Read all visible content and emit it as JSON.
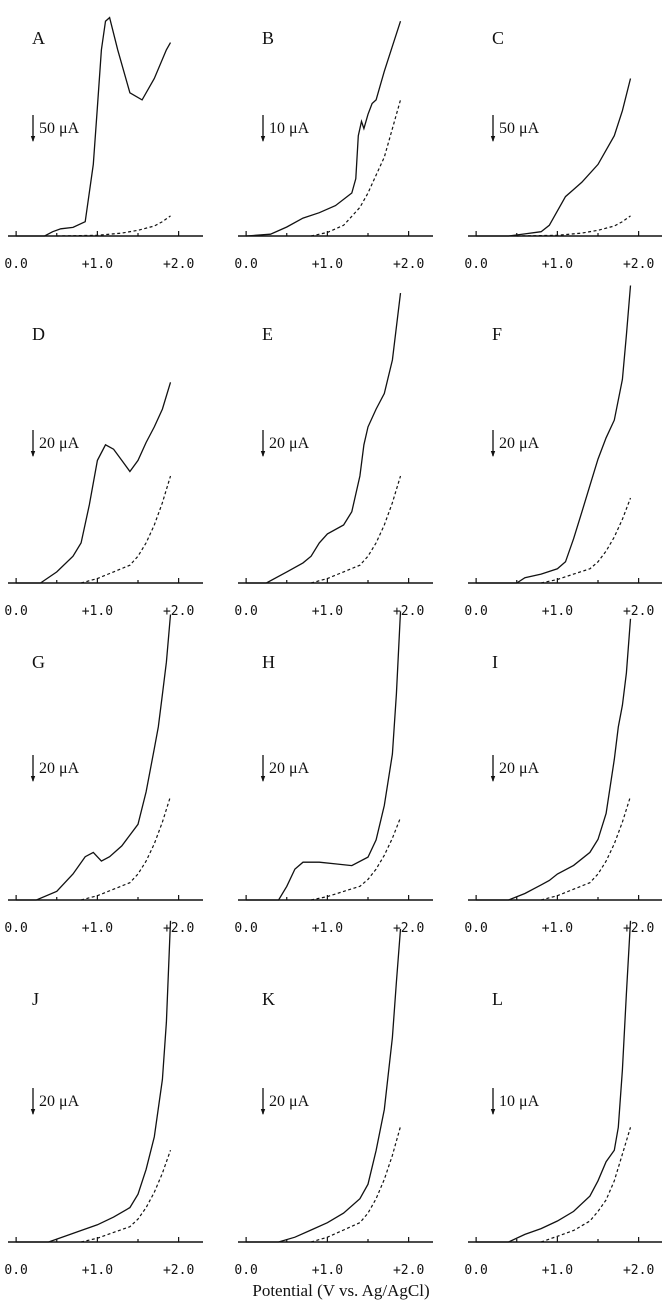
{
  "figure": {
    "xlabel": "Potential (V vs. Ag/AgCl)"
  },
  "chart_data": [
    {
      "type": "line",
      "title": "A",
      "scale_label": "50 μA",
      "scale_value": 50,
      "x_ticks": [
        "0.0",
        "+1.0",
        "+2.0"
      ],
      "xlim": [
        -0.1,
        2.3
      ],
      "ylim": [
        0,
        310
      ],
      "series": [
        {
          "style": "solid",
          "x": [
            0.0,
            0.35,
            0.45,
            0.55,
            0.7,
            0.85,
            0.95,
            1.0,
            1.05,
            1.1,
            1.15,
            1.25,
            1.4,
            1.55,
            1.7,
            1.85,
            1.9
          ],
          "y": [
            0,
            0,
            6,
            10,
            12,
            20,
            100,
            180,
            260,
            300,
            305,
            260,
            200,
            190,
            220,
            260,
            270
          ]
        },
        {
          "style": "dashed",
          "x": [
            0.5,
            1.0,
            1.3,
            1.5,
            1.7,
            1.8,
            1.9
          ],
          "y": [
            0,
            1,
            4,
            8,
            14,
            20,
            28
          ]
        }
      ]
    },
    {
      "type": "line",
      "title": "B",
      "scale_label": "10 μA",
      "scale_value": 10,
      "x_ticks": [
        "0.0",
        "+1.0",
        "+2.0"
      ],
      "xlim": [
        -0.1,
        2.3
      ],
      "ylim": [
        0,
        62
      ],
      "series": [
        {
          "style": "solid",
          "x": [
            0.0,
            0.3,
            0.5,
            0.7,
            0.9,
            1.1,
            1.3,
            1.35,
            1.38,
            1.42,
            1.45,
            1.5,
            1.55,
            1.6,
            1.65,
            1.7,
            1.8,
            1.9
          ],
          "y": [
            0,
            0.5,
            2.5,
            5,
            6.5,
            8.5,
            12,
            16,
            28,
            32,
            30,
            34,
            37,
            38,
            42,
            46,
            53,
            60
          ]
        },
        {
          "style": "dashed",
          "x": [
            0.8,
            1.0,
            1.2,
            1.4,
            1.5,
            1.6,
            1.7,
            1.8,
            1.9
          ],
          "y": [
            0,
            1,
            3,
            8,
            12,
            17,
            22,
            30,
            38
          ]
        }
      ]
    },
    {
      "type": "line",
      "title": "C",
      "scale_label": "50 μA",
      "scale_value": 50,
      "x_ticks": [
        "0.0",
        "+1.0",
        "+2.0"
      ],
      "xlim": [
        -0.1,
        2.3
      ],
      "ylim": [
        0,
        310
      ],
      "series": [
        {
          "style": "solid",
          "x": [
            0.0,
            0.4,
            0.6,
            0.8,
            0.9,
            1.0,
            1.1,
            1.2,
            1.3,
            1.5,
            1.7,
            1.8,
            1.9
          ],
          "y": [
            0,
            0,
            3,
            6,
            15,
            35,
            55,
            65,
            75,
            100,
            140,
            175,
            220
          ]
        },
        {
          "style": "dashed",
          "x": [
            0.5,
            1.0,
            1.3,
            1.5,
            1.7,
            1.8,
            1.9
          ],
          "y": [
            0,
            1,
            4,
            8,
            14,
            20,
            28
          ]
        }
      ]
    },
    {
      "type": "line",
      "title": "D",
      "scale_label": "20 μA",
      "scale_value": 20,
      "x_ticks": [
        "0.0",
        "+1.0",
        "+2.0"
      ],
      "xlim": [
        -0.1,
        2.3
      ],
      "ylim": [
        0,
        135
      ],
      "series": [
        {
          "style": "solid",
          "x": [
            0.0,
            0.3,
            0.5,
            0.7,
            0.8,
            0.9,
            1.0,
            1.1,
            1.2,
            1.3,
            1.4,
            1.5,
            1.6,
            1.7,
            1.8,
            1.9
          ],
          "y": [
            0,
            0,
            5,
            12,
            18,
            35,
            55,
            62,
            60,
            55,
            50,
            55,
            63,
            70,
            78,
            90
          ]
        },
        {
          "style": "dashed",
          "x": [
            0.8,
            1.0,
            1.2,
            1.4,
            1.5,
            1.6,
            1.7,
            1.8,
            1.9
          ],
          "y": [
            0,
            2,
            5,
            8,
            12,
            18,
            26,
            36,
            48
          ]
        }
      ]
    },
    {
      "type": "line",
      "title": "E",
      "scale_label": "20 μA",
      "scale_value": 20,
      "x_ticks": [
        "0.0",
        "+1.0",
        "+2.0"
      ],
      "xlim": [
        -0.1,
        2.3
      ],
      "ylim": [
        0,
        135
      ],
      "series": [
        {
          "style": "solid",
          "x": [
            0.0,
            0.25,
            0.5,
            0.7,
            0.8,
            0.9,
            1.0,
            1.2,
            1.3,
            1.4,
            1.45,
            1.5,
            1.6,
            1.7,
            1.8,
            1.9
          ],
          "y": [
            0,
            0,
            5,
            9,
            12,
            18,
            22,
            26,
            32,
            48,
            62,
            70,
            78,
            85,
            100,
            130
          ]
        },
        {
          "style": "dashed",
          "x": [
            0.8,
            1.0,
            1.2,
            1.4,
            1.5,
            1.6,
            1.7,
            1.8,
            1.9
          ],
          "y": [
            0,
            2,
            5,
            8,
            12,
            18,
            26,
            36,
            48
          ]
        }
      ]
    },
    {
      "type": "line",
      "title": "F",
      "scale_label": "20 μA",
      "scale_value": 20,
      "x_ticks": [
        "0.0",
        "+1.0",
        "+2.0"
      ],
      "xlim": [
        -0.1,
        2.3
      ],
      "ylim": [
        0,
        170
      ],
      "series": [
        {
          "style": "solid",
          "x": [
            0.0,
            0.5,
            0.6,
            0.8,
            1.0,
            1.1,
            1.2,
            1.3,
            1.4,
            1.5,
            1.6,
            1.7,
            1.8,
            1.85,
            1.9
          ],
          "y": [
            0,
            0,
            3,
            5,
            8,
            12,
            25,
            40,
            55,
            70,
            82,
            92,
            115,
            140,
            168
          ]
        },
        {
          "style": "dashed",
          "x": [
            0.8,
            1.0,
            1.2,
            1.4,
            1.5,
            1.6,
            1.7,
            1.8,
            1.9
          ],
          "y": [
            0,
            2,
            5,
            8,
            12,
            18,
            26,
            36,
            48
          ]
        }
      ]
    },
    {
      "type": "line",
      "title": "G",
      "scale_label": "20 μA",
      "scale_value": 20,
      "x_ticks": [
        "0.0",
        "+1.0",
        "+2.0"
      ],
      "xlim": [
        -0.1,
        2.3
      ],
      "ylim": [
        0,
        135
      ],
      "series": [
        {
          "style": "solid",
          "x": [
            0.0,
            0.25,
            0.5,
            0.7,
            0.85,
            0.95,
            1.05,
            1.15,
            1.3,
            1.5,
            1.6,
            1.7,
            1.75,
            1.8,
            1.85,
            1.9
          ],
          "y": [
            0,
            0,
            4,
            12,
            20,
            22,
            18,
            20,
            25,
            35,
            50,
            70,
            80,
            95,
            110,
            132
          ]
        },
        {
          "style": "dashed",
          "x": [
            0.8,
            1.0,
            1.2,
            1.4,
            1.5,
            1.6,
            1.7,
            1.8,
            1.9
          ],
          "y": [
            0,
            2,
            5,
            8,
            12,
            18,
            26,
            36,
            48
          ]
        }
      ]
    },
    {
      "type": "line",
      "title": "H",
      "scale_label": "20 μA",
      "scale_value": 20,
      "x_ticks": [
        "0.0",
        "+1.0",
        "+2.0"
      ],
      "xlim": [
        -0.1,
        2.3
      ],
      "ylim": [
        0,
        170
      ],
      "series": [
        {
          "style": "solid",
          "x": [
            0.0,
            0.4,
            0.5,
            0.6,
            0.7,
            0.9,
            1.1,
            1.3,
            1.5,
            1.6,
            1.7,
            1.8,
            1.85,
            1.9
          ],
          "y": [
            0,
            0,
            8,
            18,
            22,
            22,
            21,
            20,
            25,
            35,
            55,
            85,
            120,
            168
          ]
        },
        {
          "style": "dashed",
          "x": [
            0.8,
            1.0,
            1.2,
            1.4,
            1.5,
            1.6,
            1.7,
            1.8,
            1.9
          ],
          "y": [
            0,
            2,
            5,
            8,
            12,
            18,
            26,
            36,
            48
          ]
        }
      ]
    },
    {
      "type": "line",
      "title": "I",
      "scale_label": "20 μA",
      "scale_value": 20,
      "x_ticks": [
        "0.0",
        "+1.0",
        "+2.0"
      ],
      "xlim": [
        -0.1,
        2.3
      ],
      "ylim": [
        0,
        135
      ],
      "series": [
        {
          "style": "solid",
          "x": [
            0.0,
            0.4,
            0.6,
            0.8,
            0.9,
            1.0,
            1.2,
            1.4,
            1.5,
            1.6,
            1.7,
            1.75,
            1.8,
            1.85,
            1.9
          ],
          "y": [
            0,
            0,
            3,
            7,
            9,
            12,
            16,
            22,
            28,
            40,
            65,
            80,
            90,
            105,
            130
          ]
        },
        {
          "style": "dashed",
          "x": [
            0.8,
            1.0,
            1.2,
            1.4,
            1.5,
            1.6,
            1.7,
            1.8,
            1.9
          ],
          "y": [
            0,
            2,
            5,
            8,
            12,
            18,
            26,
            36,
            48
          ]
        }
      ]
    },
    {
      "type": "line",
      "title": "J",
      "scale_label": "20 μA",
      "scale_value": 20,
      "x_ticks": [
        "0.0",
        "+1.0",
        "+2.0"
      ],
      "xlim": [
        -0.1,
        2.3
      ],
      "ylim": [
        0,
        170
      ],
      "series": [
        {
          "style": "solid",
          "x": [
            0.0,
            0.4,
            0.6,
            0.8,
            1.0,
            1.2,
            1.4,
            1.5,
            1.6,
            1.7,
            1.8,
            1.85,
            1.9
          ],
          "y": [
            0,
            0,
            3,
            6,
            9,
            13,
            18,
            25,
            38,
            55,
            85,
            115,
            168
          ]
        },
        {
          "style": "dashed",
          "x": [
            0.8,
            1.0,
            1.2,
            1.4,
            1.5,
            1.6,
            1.7,
            1.8,
            1.9
          ],
          "y": [
            0,
            2,
            5,
            8,
            12,
            18,
            26,
            36,
            48
          ]
        }
      ]
    },
    {
      "type": "line",
      "title": "K",
      "scale_label": "20 μA",
      "scale_value": 20,
      "x_ticks": [
        "0.0",
        "+1.0",
        "+2.0"
      ],
      "xlim": [
        -0.1,
        2.3
      ],
      "ylim": [
        0,
        135
      ],
      "series": [
        {
          "style": "solid",
          "x": [
            0.0,
            0.4,
            0.6,
            0.8,
            1.0,
            1.2,
            1.4,
            1.5,
            1.6,
            1.7,
            1.8,
            1.85,
            1.9
          ],
          "y": [
            0,
            0,
            2,
            5,
            8,
            12,
            18,
            24,
            38,
            55,
            85,
            108,
            130
          ]
        },
        {
          "style": "dashed",
          "x": [
            0.8,
            1.0,
            1.2,
            1.4,
            1.5,
            1.6,
            1.7,
            1.8,
            1.9
          ],
          "y": [
            0,
            2,
            5,
            8,
            12,
            18,
            26,
            36,
            48
          ]
        }
      ]
    },
    {
      "type": "line",
      "title": "L",
      "scale_label": "10 μA",
      "scale_value": 10,
      "x_ticks": [
        "0.0",
        "+1.0",
        "+2.0"
      ],
      "xlim": [
        -0.1,
        2.3
      ],
      "ylim": [
        0,
        85
      ],
      "series": [
        {
          "style": "solid",
          "x": [
            0.0,
            0.4,
            0.6,
            0.8,
            1.0,
            1.2,
            1.4,
            1.5,
            1.6,
            1.7,
            1.75,
            1.8,
            1.85,
            1.9
          ],
          "y": [
            0,
            0,
            2,
            3.5,
            5.5,
            8,
            12,
            16,
            21,
            24,
            30,
            45,
            65,
            84
          ]
        },
        {
          "style": "dashed",
          "x": [
            0.8,
            1.0,
            1.2,
            1.4,
            1.5,
            1.6,
            1.7,
            1.8,
            1.9
          ],
          "y": [
            0,
            1.5,
            3,
            5.5,
            8,
            11,
            16,
            23,
            30
          ]
        }
      ]
    }
  ]
}
